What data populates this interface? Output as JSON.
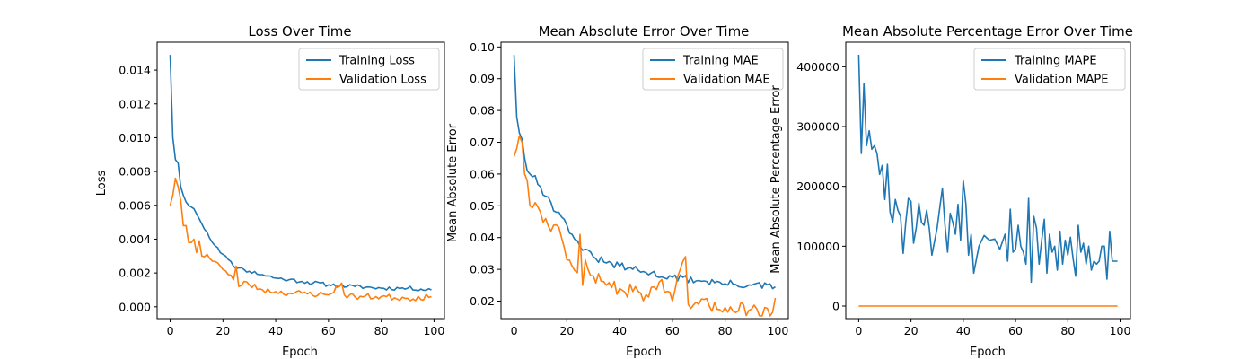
{
  "colors": {
    "training": "#1f77b4",
    "validation": "#ff7f0e",
    "axis": "#000000",
    "background": "#ffffff"
  },
  "chart_data": [
    {
      "type": "line",
      "title": "Loss Over Time",
      "xlabel": "Epoch",
      "ylabel": "Loss",
      "xlim": [
        -4.95,
        103.95
      ],
      "ylim": [
        -0.0007,
        0.01565
      ],
      "xticks": [
        0,
        20,
        40,
        60,
        80,
        100
      ],
      "xtick_labels": [
        "0",
        "20",
        "40",
        "60",
        "80",
        "100"
      ],
      "yticks": [
        0,
        0.002,
        0.004,
        0.006,
        0.008,
        0.01,
        0.012,
        0.014
      ],
      "ytick_labels": [
        "0.000",
        "0.002",
        "0.004",
        "0.006",
        "0.008",
        "0.010",
        "0.012",
        "0.014"
      ],
      "legend": "top-right",
      "grid": false,
      "series": [
        {
          "name": "Training Loss",
          "color": "#1f77b4",
          "anchors": [
            [
              0,
              0.0149
            ],
            [
              1,
              0.01
            ],
            [
              2,
              0.0087
            ],
            [
              3,
              0.0085
            ],
            [
              4,
              0.0071
            ],
            [
              5,
              0.0066
            ],
            [
              6,
              0.0062
            ],
            [
              7,
              0.006
            ],
            [
              8,
              0.0059
            ],
            [
              9,
              0.0058
            ],
            [
              10,
              0.0055
            ],
            [
              11,
              0.0052
            ],
            [
              12,
              0.0049
            ],
            [
              14,
              0.0044
            ],
            [
              16,
              0.0038
            ],
            [
              18,
              0.0035
            ],
            [
              20,
              0.0031
            ],
            [
              22,
              0.0028
            ],
            [
              24,
              0.0024
            ],
            [
              26,
              0.0023
            ],
            [
              28,
              0.0022
            ],
            [
              30,
              0.0021
            ],
            [
              35,
              0.0019
            ],
            [
              40,
              0.0017
            ],
            [
              45,
              0.0016
            ],
            [
              50,
              0.0015
            ],
            [
              60,
              0.0013
            ],
            [
              70,
              0.0012
            ],
            [
              80,
              0.0011
            ],
            [
              90,
              0.0011
            ],
            [
              99,
              0.001
            ]
          ],
          "noise": 0.00012,
          "seed": 11
        },
        {
          "name": "Validation Loss",
          "color": "#ff7f0e",
          "anchors": [
            [
              0,
              0.006
            ],
            [
              1,
              0.0066
            ],
            [
              2,
              0.0076
            ],
            [
              3,
              0.0071
            ],
            [
              4,
              0.0063
            ],
            [
              5,
              0.0048
            ],
            [
              6,
              0.0048
            ],
            [
              7,
              0.0038
            ],
            [
              8,
              0.0038
            ],
            [
              9,
              0.004
            ],
            [
              10,
              0.0032
            ],
            [
              11,
              0.0039
            ],
            [
              12,
              0.003
            ],
            [
              14,
              0.0031
            ],
            [
              16,
              0.0027
            ],
            [
              18,
              0.0026
            ],
            [
              20,
              0.0022
            ],
            [
              22,
              0.0019
            ],
            [
              24,
              0.0016
            ],
            [
              25,
              0.0024
            ],
            [
              26,
              0.0012
            ],
            [
              28,
              0.0015
            ],
            [
              30,
              0.0013
            ],
            [
              35,
              0.001
            ],
            [
              40,
              0.0009
            ],
            [
              45,
              0.0008
            ],
            [
              50,
              0.0008
            ],
            [
              60,
              0.0007
            ],
            [
              65,
              0.0014
            ],
            [
              66,
              0.0007
            ],
            [
              70,
              0.0006
            ],
            [
              80,
              0.0006
            ],
            [
              90,
              0.0005
            ],
            [
              99,
              0.0006
            ]
          ],
          "noise": 0.00018,
          "seed": 23
        }
      ]
    },
    {
      "type": "line",
      "title": "Mean Absolute Error Over Time",
      "xlabel": "Epoch",
      "ylabel": "Mean Absolute Error",
      "xlim": [
        -4.95,
        103.95
      ],
      "ylim": [
        0.0145,
        0.1015
      ],
      "xticks": [
        0,
        20,
        40,
        60,
        80,
        100
      ],
      "xtick_labels": [
        "0",
        "20",
        "40",
        "60",
        "80",
        "100"
      ],
      "yticks": [
        0.02,
        0.03,
        0.04,
        0.05,
        0.06,
        0.07,
        0.08,
        0.09,
        0.1
      ],
      "ytick_labels": [
        "0.02",
        "0.03",
        "0.04",
        "0.05",
        "0.06",
        "0.07",
        "0.08",
        "0.09",
        "0.10"
      ],
      "legend": "top-right",
      "grid": false,
      "series": [
        {
          "name": "Training MAE",
          "color": "#1f77b4",
          "anchors": [
            [
              0,
              0.0975
            ],
            [
              1,
              0.078
            ],
            [
              2,
              0.073
            ],
            [
              3,
              0.071
            ],
            [
              4,
              0.065
            ],
            [
              5,
              0.061
            ],
            [
              6,
              0.06
            ],
            [
              8,
              0.0595
            ],
            [
              10,
              0.056
            ],
            [
              12,
              0.053
            ],
            [
              14,
              0.051
            ],
            [
              16,
              0.048
            ],
            [
              18,
              0.0465
            ],
            [
              20,
              0.044
            ],
            [
              22,
              0.041
            ],
            [
              24,
              0.039
            ],
            [
              26,
              0.036
            ],
            [
              30,
              0.034
            ],
            [
              35,
              0.032
            ],
            [
              40,
              0.031
            ],
            [
              45,
              0.03
            ],
            [
              50,
              0.029
            ],
            [
              60,
              0.0275
            ],
            [
              70,
              0.0265
            ],
            [
              80,
              0.0255
            ],
            [
              90,
              0.025
            ],
            [
              99,
              0.0245
            ]
          ],
          "noise": 0.0012,
          "seed": 31
        },
        {
          "name": "Validation MAE",
          "color": "#ff7f0e",
          "anchors": [
            [
              0,
              0.0655
            ],
            [
              1,
              0.068
            ],
            [
              2,
              0.072
            ],
            [
              3,
              0.07
            ],
            [
              4,
              0.06
            ],
            [
              5,
              0.058
            ],
            [
              6,
              0.05
            ],
            [
              8,
              0.051
            ],
            [
              10,
              0.048
            ],
            [
              12,
              0.046
            ],
            [
              14,
              0.042
            ],
            [
              16,
              0.044
            ],
            [
              18,
              0.04
            ],
            [
              20,
              0.033
            ],
            [
              22,
              0.031
            ],
            [
              24,
              0.029
            ],
            [
              25,
              0.041
            ],
            [
              26,
              0.025
            ],
            [
              27,
              0.033
            ],
            [
              28,
              0.03
            ],
            [
              30,
              0.028
            ],
            [
              35,
              0.025
            ],
            [
              40,
              0.024
            ],
            [
              45,
              0.023
            ],
            [
              50,
              0.022
            ],
            [
              55,
              0.026
            ],
            [
              60,
              0.02
            ],
            [
              65,
              0.034
            ],
            [
              66,
              0.019
            ],
            [
              70,
              0.019
            ],
            [
              80,
              0.018
            ],
            [
              90,
              0.0175
            ],
            [
              98,
              0.0165
            ],
            [
              99,
              0.021
            ]
          ],
          "noise": 0.0022,
          "seed": 47
        }
      ]
    },
    {
      "type": "line",
      "title": "Mean Absolute Percentage Error Over Time",
      "xlabel": "Epoch",
      "ylabel": "Mean Absolute Percentage Error",
      "xlim": [
        -4.95,
        103.95
      ],
      "ylim": [
        -21000,
        441000
      ],
      "xticks": [
        0,
        20,
        40,
        60,
        80,
        100
      ],
      "xtick_labels": [
        "0",
        "20",
        "40",
        "60",
        "80",
        "100"
      ],
      "yticks": [
        0,
        100000,
        200000,
        300000,
        400000
      ],
      "ytick_labels": [
        "0",
        "100000",
        "200000",
        "300000",
        "400000"
      ],
      "legend": "top-right",
      "grid": false,
      "series": [
        {
          "name": "Training MAPE",
          "color": "#1f77b4",
          "anchors": [
            [
              0,
              420000
            ],
            [
              1,
              255000
            ],
            [
              2,
              372000
            ],
            [
              3,
              268000
            ],
            [
              4,
              293000
            ],
            [
              5,
              262000
            ],
            [
              6,
              268000
            ],
            [
              7,
              255000
            ],
            [
              8,
              220000
            ],
            [
              9,
              235000
            ],
            [
              10,
              178000
            ],
            [
              11,
              237000
            ],
            [
              12,
              157000
            ],
            [
              13,
              140000
            ],
            [
              14,
              178000
            ],
            [
              15,
              160000
            ],
            [
              16,
              150000
            ],
            [
              17,
              88000
            ],
            [
              18,
              140000
            ],
            [
              19,
              180000
            ],
            [
              20,
              175000
            ],
            [
              21,
              105000
            ],
            [
              22,
              130000
            ],
            [
              23,
              172000
            ],
            [
              24,
              140000
            ],
            [
              25,
              135000
            ],
            [
              26,
              160000
            ],
            [
              27,
              130000
            ],
            [
              28,
              85000
            ],
            [
              30,
              130000
            ],
            [
              32,
              197000
            ],
            [
              33,
              135000
            ],
            [
              34,
              90000
            ],
            [
              35,
              155000
            ],
            [
              36,
              140000
            ],
            [
              37,
              120000
            ],
            [
              38,
              170000
            ],
            [
              39,
              110000
            ],
            [
              40,
              210000
            ],
            [
              41,
              170000
            ],
            [
              42,
              85000
            ],
            [
              43,
              120000
            ],
            [
              44,
              55000
            ],
            [
              46,
              100000
            ],
            [
              48,
              118000
            ],
            [
              50,
              110000
            ],
            [
              52,
              112000
            ],
            [
              54,
              95000
            ],
            [
              56,
              120000
            ],
            [
              57,
              75000
            ],
            [
              58,
              162000
            ],
            [
              59,
              90000
            ],
            [
              60,
              95000
            ],
            [
              61,
              135000
            ],
            [
              62,
              100000
            ],
            [
              63,
              90000
            ],
            [
              64,
              70000
            ],
            [
              65,
              180000
            ],
            [
              66,
              40000
            ],
            [
              67,
              150000
            ],
            [
              68,
              130000
            ],
            [
              69,
              70000
            ],
            [
              70,
              110000
            ],
            [
              71,
              145000
            ],
            [
              72,
              55000
            ],
            [
              73,
              120000
            ],
            [
              74,
              90000
            ],
            [
              75,
              100000
            ],
            [
              76,
              60000
            ],
            [
              77,
              125000
            ],
            [
              78,
              70000
            ],
            [
              79,
              110000
            ],
            [
              80,
              85000
            ],
            [
              81,
              115000
            ],
            [
              82,
              80000
            ],
            [
              83,
              50000
            ],
            [
              84,
              135000
            ],
            [
              85,
              90000
            ],
            [
              86,
              105000
            ],
            [
              87,
              70000
            ],
            [
              88,
              100000
            ],
            [
              89,
              60000
            ],
            [
              90,
              75000
            ],
            [
              91,
              70000
            ],
            [
              92,
              75000
            ],
            [
              93,
              100000
            ],
            [
              94,
              100000
            ],
            [
              95,
              45000
            ],
            [
              96,
              125000
            ],
            [
              97,
              75000
            ],
            [
              98,
              75000
            ],
            [
              99,
              75000
            ]
          ],
          "noise": 0,
          "seed": 5
        },
        {
          "name": "Validation MAPE",
          "color": "#ff7f0e",
          "anchors": [
            [
              0,
              0
            ],
            [
              99,
              0
            ]
          ],
          "noise": 0,
          "seed": 7
        }
      ]
    }
  ]
}
